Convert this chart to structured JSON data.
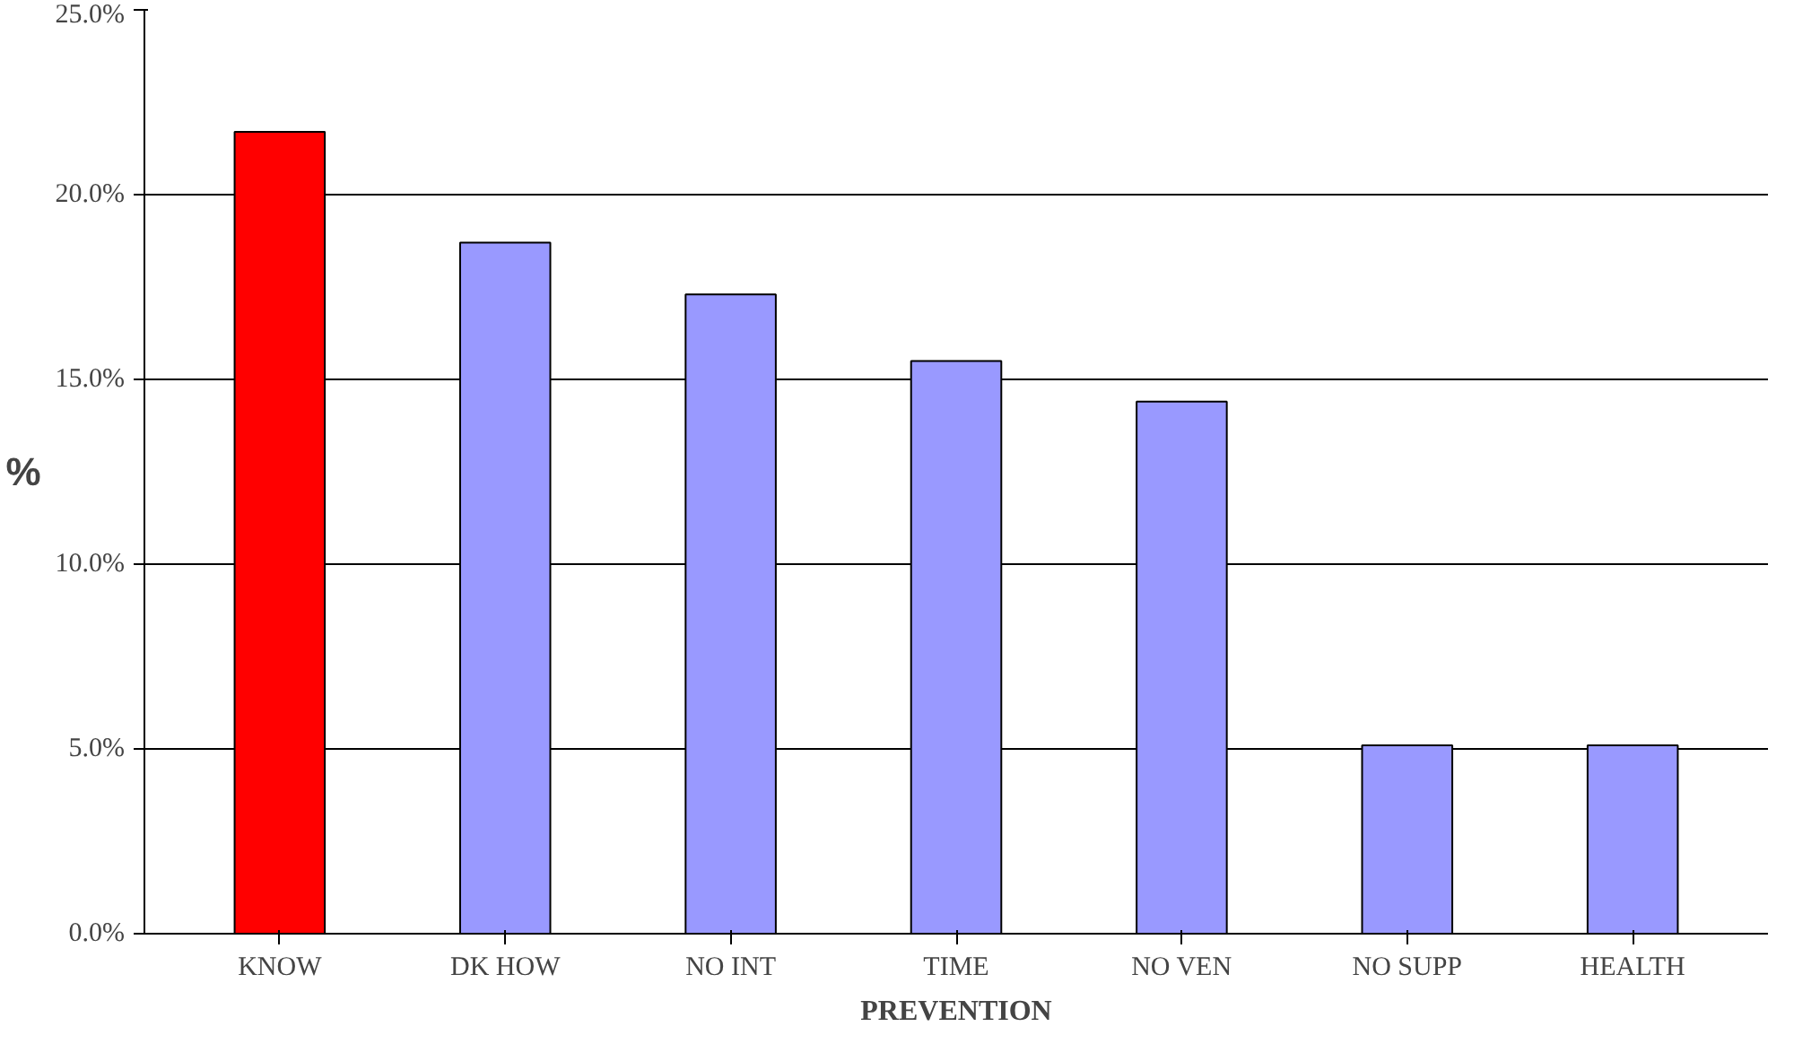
{
  "chart_data": {
    "type": "bar",
    "xlabel": "PREVENTION",
    "ylabel": "%",
    "categories": [
      "KNOW",
      "DK HOW",
      "NO INT",
      "TIME",
      "NO VEN",
      "NO SUPP",
      "HEALTH"
    ],
    "values": [
      21.7,
      18.7,
      17.3,
      15.5,
      14.4,
      5.1,
      5.1
    ],
    "colors": [
      "#ff0000",
      "#9999ff",
      "#9999ff",
      "#9999ff",
      "#9999ff",
      "#9999ff",
      "#9999ff"
    ],
    "ylim": [
      0,
      25
    ],
    "yticks": [
      {
        "value": 0,
        "label": "0.0%"
      },
      {
        "value": 5,
        "label": "5.0%"
      },
      {
        "value": 10,
        "label": "10.0%"
      },
      {
        "value": 15,
        "label": "15.0%"
      },
      {
        "value": 20,
        "label": "20.0%"
      },
      {
        "value": 25,
        "label": "25.0%"
      }
    ],
    "grid": "y"
  }
}
